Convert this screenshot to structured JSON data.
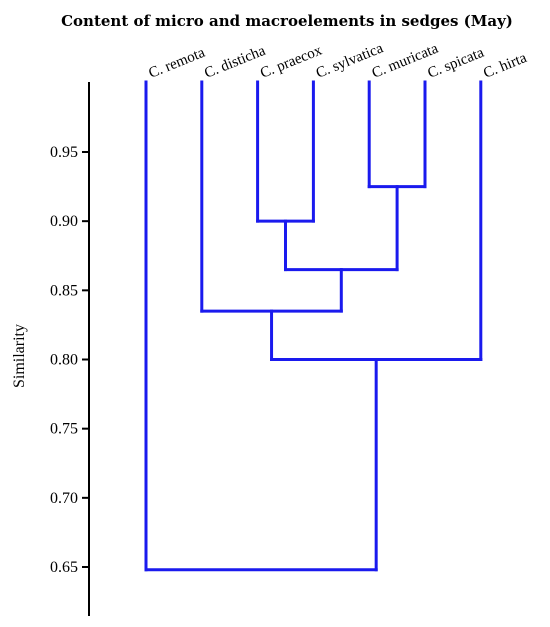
{
  "chart_data": {
    "type": "dendrogram",
    "title": "Content of micro and macroelements in sedges (May)",
    "ylabel": "Similarity",
    "yticks": [
      0.95,
      0.9,
      0.85,
      0.8,
      0.75,
      0.7,
      0.65
    ],
    "ytick_labels": [
      "0.95",
      "0.90",
      "0.85",
      "0.80",
      "0.75",
      "0.70",
      "0.65"
    ],
    "ylim": [
      0.615,
      0.995
    ],
    "leaves": [
      "C. remota",
      "C. disticha",
      "C. praecox",
      "C. sylvatica",
      "C. muricata",
      "C. spicata",
      "C. hirta"
    ],
    "merges": [
      {
        "left": "C. praecox",
        "right": "C. sylvatica",
        "similarity": 0.9
      },
      {
        "left": "C. muricata",
        "right": "C. spicata",
        "similarity": 0.925
      },
      {
        "left": "C. praecox + C. sylvatica",
        "right": "C. muricata + C. spicata",
        "similarity": 0.865
      },
      {
        "left": "C. disticha",
        "right": "C. praecox + C. sylvatica + C. muricata + C. spicata",
        "similarity": 0.835
      },
      {
        "left": "C. disticha + C. praecox + C. sylvatica + C. muricata + C. spicata",
        "right": "C. hirta",
        "similarity": 0.8
      },
      {
        "left": "C. remota",
        "right": "C. disticha + C. praecox + C. sylvatica + C. muricata + C. spicata + C. hirta",
        "similarity": 0.648
      }
    ],
    "line_color": "#1a1aee",
    "grid": false
  }
}
